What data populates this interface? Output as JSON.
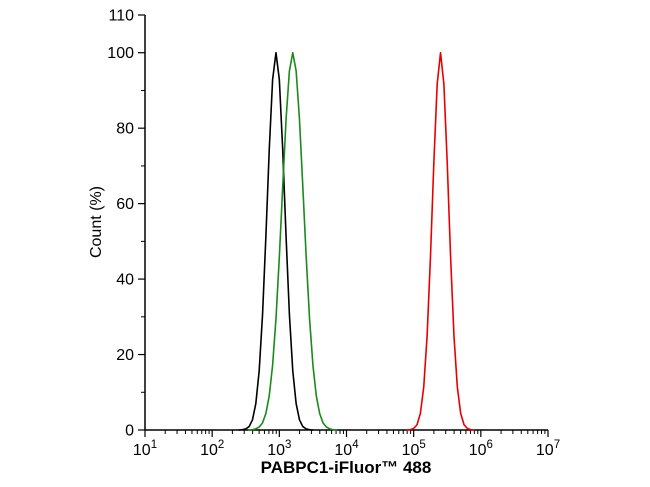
{
  "chart_data": {
    "type": "line",
    "title": "",
    "xlabel": "PABPC1-iFluor™ 488",
    "ylabel": "Count (%)",
    "x_scale": "log",
    "x_range_log10": [
      1,
      7
    ],
    "y_range": [
      0,
      110
    ],
    "x_major_tick_base": "10",
    "x_major_tick_exponents": [
      1,
      2,
      3,
      4,
      5,
      6,
      7
    ],
    "y_major_ticks": [
      0,
      20,
      40,
      60,
      80,
      100,
      110
    ],
    "y_minor_ticks": [
      10,
      30,
      50,
      70,
      90
    ],
    "grid": false,
    "legend": null,
    "series": [
      {
        "name": "black",
        "color": "#000000",
        "peak_x": 900,
        "peak_y": 100,
        "points": [
          [
            2.4,
            0
          ],
          [
            2.45,
            0.1
          ],
          [
            2.5,
            0.3
          ],
          [
            2.55,
            0.9
          ],
          [
            2.6,
            2.7
          ],
          [
            2.65,
            7.0
          ],
          [
            2.7,
            15.7
          ],
          [
            2.75,
            30.6
          ],
          [
            2.8,
            51.4
          ],
          [
            2.85,
            74.4
          ],
          [
            2.9,
            92.9
          ],
          [
            2.95,
            100
          ],
          [
            3.0,
            92.9
          ],
          [
            3.05,
            74.4
          ],
          [
            3.1,
            51.4
          ],
          [
            3.15,
            30.6
          ],
          [
            3.2,
            15.7
          ],
          [
            3.25,
            7.0
          ],
          [
            3.3,
            2.7
          ],
          [
            3.35,
            0.9
          ],
          [
            3.4,
            0.3
          ],
          [
            3.45,
            0.1
          ],
          [
            3.5,
            0
          ]
        ]
      },
      {
        "name": "green",
        "color": "#1a8a1a",
        "peak_x": 1600,
        "peak_y": 100,
        "points": [
          [
            2.55,
            0
          ],
          [
            2.6,
            0.1
          ],
          [
            2.65,
            0.3
          ],
          [
            2.7,
            0.8
          ],
          [
            2.75,
            1.9
          ],
          [
            2.8,
            4.4
          ],
          [
            2.85,
            9.1
          ],
          [
            2.9,
            17.2
          ],
          [
            2.95,
            29.5
          ],
          [
            3.0,
            45.8
          ],
          [
            3.05,
            64.4
          ],
          [
            3.1,
            82.3
          ],
          [
            3.15,
            95.2
          ],
          [
            3.2,
            100
          ],
          [
            3.25,
            95.2
          ],
          [
            3.3,
            82.3
          ],
          [
            3.35,
            64.4
          ],
          [
            3.4,
            45.8
          ],
          [
            3.45,
            29.5
          ],
          [
            3.5,
            17.2
          ],
          [
            3.55,
            9.1
          ],
          [
            3.6,
            4.4
          ],
          [
            3.65,
            1.9
          ],
          [
            3.7,
            0.8
          ],
          [
            3.75,
            0.3
          ],
          [
            3.8,
            0.1
          ],
          [
            3.85,
            0
          ]
        ]
      },
      {
        "name": "red",
        "color": "#e80000",
        "peak_x": 250000,
        "peak_y": 100,
        "points": [
          [
            4.9,
            0
          ],
          [
            4.95,
            0.1
          ],
          [
            5.0,
            0.4
          ],
          [
            5.05,
            1.4
          ],
          [
            5.1,
            4.4
          ],
          [
            5.15,
            11.4
          ],
          [
            5.2,
            24.9
          ],
          [
            5.25,
            45.8
          ],
          [
            5.3,
            70.7
          ],
          [
            5.35,
            91.7
          ],
          [
            5.4,
            100
          ],
          [
            5.45,
            91.7
          ],
          [
            5.5,
            70.7
          ],
          [
            5.55,
            45.8
          ],
          [
            5.6,
            24.9
          ],
          [
            5.65,
            11.4
          ],
          [
            5.7,
            4.4
          ],
          [
            5.75,
            1.4
          ],
          [
            5.8,
            0.4
          ],
          [
            5.85,
            0.1
          ],
          [
            5.9,
            0
          ]
        ]
      }
    ],
    "axis_color": "#000000"
  }
}
